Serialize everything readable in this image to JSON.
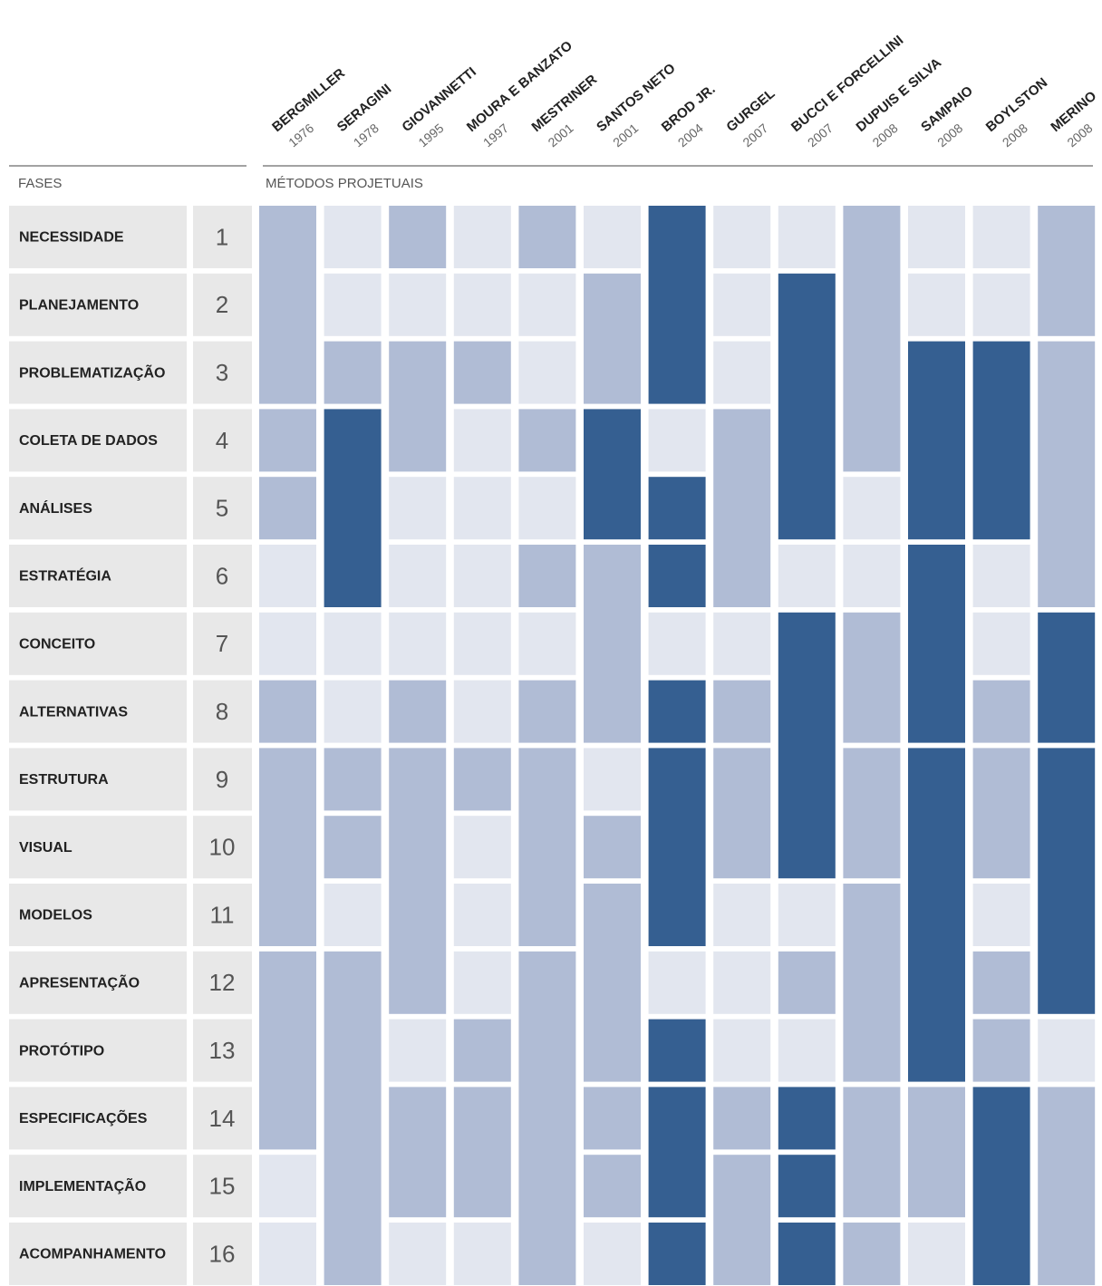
{
  "header": {
    "phases_label": "FASES",
    "methods_label": "MÉTODOS PROJETUAIS"
  },
  "phases": [
    {
      "label": "NECESSIDADE",
      "number": 1
    },
    {
      "label": "PLANEJAMENTO",
      "number": 2
    },
    {
      "label": "PROBLEMATIZAÇÃO",
      "number": 3
    },
    {
      "label": "COLETA DE DADOS",
      "number": 4
    },
    {
      "label": "ANÁLISES",
      "number": 5
    },
    {
      "label": "ESTRATÉGIA",
      "number": 6
    },
    {
      "label": "CONCEITO",
      "number": 7
    },
    {
      "label": "ALTERNATIVAS",
      "number": 8
    },
    {
      "label": "ESTRUTURA",
      "number": 9
    },
    {
      "label": "VISUAL",
      "number": 10
    },
    {
      "label": "MODELOS",
      "number": 11
    },
    {
      "label": "APRESENTAÇÃO",
      "number": 12
    },
    {
      "label": "PROTÓTIPO",
      "number": 13
    },
    {
      "label": "ESPECIFICAÇÕES",
      "number": 14
    },
    {
      "label": "IMPLEMENTAÇÃO",
      "number": 15
    },
    {
      "label": "ACOMPANHAMENTO",
      "number": 16
    }
  ],
  "tones": {
    "light": "#e2e6ef",
    "mid": "#b0bcd5",
    "dark": "#355f91"
  },
  "methods": [
    {
      "name": "BERGMILLER",
      "year": "1976",
      "blocks": [
        {
          "from": 1,
          "to": 3,
          "tone": "mid"
        },
        {
          "from": 4,
          "to": 4,
          "tone": "mid"
        },
        {
          "from": 5,
          "to": 5,
          "tone": "mid"
        },
        {
          "from": 6,
          "to": 6,
          "tone": "light"
        },
        {
          "from": 7,
          "to": 7,
          "tone": "light"
        },
        {
          "from": 8,
          "to": 8,
          "tone": "mid"
        },
        {
          "from": 9,
          "to": 11,
          "tone": "mid"
        },
        {
          "from": 12,
          "to": 14,
          "tone": "mid"
        },
        {
          "from": 15,
          "to": 15,
          "tone": "light"
        },
        {
          "from": 16,
          "to": 16,
          "tone": "light"
        }
      ]
    },
    {
      "name": "SERAGINI",
      "year": "1978",
      "blocks": [
        {
          "from": 1,
          "to": 1,
          "tone": "light"
        },
        {
          "from": 2,
          "to": 2,
          "tone": "light"
        },
        {
          "from": 3,
          "to": 3,
          "tone": "mid"
        },
        {
          "from": 4,
          "to": 6,
          "tone": "dark"
        },
        {
          "from": 7,
          "to": 7,
          "tone": "light"
        },
        {
          "from": 8,
          "to": 8,
          "tone": "light"
        },
        {
          "from": 9,
          "to": 9,
          "tone": "mid"
        },
        {
          "from": 10,
          "to": 10,
          "tone": "mid"
        },
        {
          "from": 11,
          "to": 11,
          "tone": "light"
        },
        {
          "from": 12,
          "to": 16,
          "tone": "mid"
        }
      ]
    },
    {
      "name": "GIOVANNETTI",
      "year": "1995",
      "blocks": [
        {
          "from": 1,
          "to": 1,
          "tone": "mid"
        },
        {
          "from": 2,
          "to": 2,
          "tone": "light"
        },
        {
          "from": 3,
          "to": 4,
          "tone": "mid"
        },
        {
          "from": 5,
          "to": 5,
          "tone": "light"
        },
        {
          "from": 6,
          "to": 6,
          "tone": "light"
        },
        {
          "from": 7,
          "to": 7,
          "tone": "light"
        },
        {
          "from": 8,
          "to": 8,
          "tone": "mid"
        },
        {
          "from": 9,
          "to": 12,
          "tone": "mid"
        },
        {
          "from": 13,
          "to": 13,
          "tone": "light"
        },
        {
          "from": 14,
          "to": 15,
          "tone": "mid"
        },
        {
          "from": 16,
          "to": 16,
          "tone": "light"
        }
      ]
    },
    {
      "name": "MOURA E BANZATO",
      "year": "1997",
      "blocks": [
        {
          "from": 1,
          "to": 1,
          "tone": "light"
        },
        {
          "from": 2,
          "to": 2,
          "tone": "light"
        },
        {
          "from": 3,
          "to": 3,
          "tone": "mid"
        },
        {
          "from": 4,
          "to": 4,
          "tone": "light"
        },
        {
          "from": 5,
          "to": 5,
          "tone": "light"
        },
        {
          "from": 6,
          "to": 6,
          "tone": "light"
        },
        {
          "from": 7,
          "to": 7,
          "tone": "light"
        },
        {
          "from": 8,
          "to": 8,
          "tone": "light"
        },
        {
          "from": 9,
          "to": 9,
          "tone": "mid"
        },
        {
          "from": 10,
          "to": 10,
          "tone": "light"
        },
        {
          "from": 11,
          "to": 11,
          "tone": "light"
        },
        {
          "from": 12,
          "to": 12,
          "tone": "light"
        },
        {
          "from": 13,
          "to": 13,
          "tone": "mid"
        },
        {
          "from": 14,
          "to": 15,
          "tone": "mid"
        },
        {
          "from": 16,
          "to": 16,
          "tone": "light"
        }
      ]
    },
    {
      "name": "MESTRINER",
      "year": "2001",
      "blocks": [
        {
          "from": 1,
          "to": 1,
          "tone": "mid"
        },
        {
          "from": 2,
          "to": 2,
          "tone": "light"
        },
        {
          "from": 3,
          "to": 3,
          "tone": "light"
        },
        {
          "from": 4,
          "to": 4,
          "tone": "mid"
        },
        {
          "from": 5,
          "to": 5,
          "tone": "light"
        },
        {
          "from": 6,
          "to": 6,
          "tone": "mid"
        },
        {
          "from": 7,
          "to": 7,
          "tone": "light"
        },
        {
          "from": 8,
          "to": 8,
          "tone": "mid"
        },
        {
          "from": 9,
          "to": 11,
          "tone": "mid"
        },
        {
          "from": 12,
          "to": 16,
          "tone": "mid"
        }
      ]
    },
    {
      "name": "SANTOS NETO",
      "year": "2001",
      "blocks": [
        {
          "from": 1,
          "to": 1,
          "tone": "light"
        },
        {
          "from": 2,
          "to": 3,
          "tone": "mid"
        },
        {
          "from": 4,
          "to": 5,
          "tone": "dark"
        },
        {
          "from": 6,
          "to": 8,
          "tone": "mid"
        },
        {
          "from": 9,
          "to": 9,
          "tone": "light"
        },
        {
          "from": 10,
          "to": 10,
          "tone": "mid"
        },
        {
          "from": 11,
          "to": 13,
          "tone": "mid"
        },
        {
          "from": 14,
          "to": 14,
          "tone": "mid"
        },
        {
          "from": 15,
          "to": 15,
          "tone": "mid"
        },
        {
          "from": 16,
          "to": 16,
          "tone": "light"
        }
      ]
    },
    {
      "name": "BROD JR.",
      "year": "2004",
      "blocks": [
        {
          "from": 1,
          "to": 3,
          "tone": "dark"
        },
        {
          "from": 4,
          "to": 4,
          "tone": "light"
        },
        {
          "from": 5,
          "to": 5,
          "tone": "dark"
        },
        {
          "from": 6,
          "to": 6,
          "tone": "dark"
        },
        {
          "from": 7,
          "to": 7,
          "tone": "light"
        },
        {
          "from": 8,
          "to": 8,
          "tone": "dark"
        },
        {
          "from": 9,
          "to": 11,
          "tone": "dark"
        },
        {
          "from": 12,
          "to": 12,
          "tone": "light"
        },
        {
          "from": 13,
          "to": 13,
          "tone": "dark"
        },
        {
          "from": 14,
          "to": 15,
          "tone": "dark"
        },
        {
          "from": 16,
          "to": 16,
          "tone": "dark"
        }
      ]
    },
    {
      "name": "GURGEL",
      "year": "2007",
      "blocks": [
        {
          "from": 1,
          "to": 1,
          "tone": "light"
        },
        {
          "from": 2,
          "to": 2,
          "tone": "light"
        },
        {
          "from": 3,
          "to": 3,
          "tone": "light"
        },
        {
          "from": 4,
          "to": 6,
          "tone": "mid"
        },
        {
          "from": 7,
          "to": 7,
          "tone": "light"
        },
        {
          "from": 8,
          "to": 8,
          "tone": "mid"
        },
        {
          "from": 9,
          "to": 10,
          "tone": "mid"
        },
        {
          "from": 11,
          "to": 11,
          "tone": "light"
        },
        {
          "from": 12,
          "to": 12,
          "tone": "light"
        },
        {
          "from": 13,
          "to": 13,
          "tone": "light"
        },
        {
          "from": 14,
          "to": 14,
          "tone": "mid"
        },
        {
          "from": 15,
          "to": 16,
          "tone": "mid"
        }
      ]
    },
    {
      "name": "BUCCI E FORCELLINI",
      "year": "2007",
      "blocks": [
        {
          "from": 1,
          "to": 1,
          "tone": "light"
        },
        {
          "from": 2,
          "to": 5,
          "tone": "dark"
        },
        {
          "from": 6,
          "to": 6,
          "tone": "light"
        },
        {
          "from": 7,
          "to": 10,
          "tone": "dark"
        },
        {
          "from": 11,
          "to": 11,
          "tone": "light"
        },
        {
          "from": 12,
          "to": 12,
          "tone": "mid"
        },
        {
          "from": 13,
          "to": 13,
          "tone": "light"
        },
        {
          "from": 14,
          "to": 14,
          "tone": "dark"
        },
        {
          "from": 15,
          "to": 15,
          "tone": "dark"
        },
        {
          "from": 16,
          "to": 16,
          "tone": "dark"
        }
      ]
    },
    {
      "name": "DUPUIS E SILVA",
      "year": "2008",
      "blocks": [
        {
          "from": 1,
          "to": 4,
          "tone": "mid"
        },
        {
          "from": 5,
          "to": 5,
          "tone": "light"
        },
        {
          "from": 6,
          "to": 6,
          "tone": "light"
        },
        {
          "from": 7,
          "to": 8,
          "tone": "mid"
        },
        {
          "from": 9,
          "to": 10,
          "tone": "mid"
        },
        {
          "from": 11,
          "to": 13,
          "tone": "mid"
        },
        {
          "from": 14,
          "to": 15,
          "tone": "mid"
        },
        {
          "from": 16,
          "to": 16,
          "tone": "mid"
        }
      ]
    },
    {
      "name": "SAMPAIO",
      "year": "2008",
      "blocks": [
        {
          "from": 1,
          "to": 1,
          "tone": "light"
        },
        {
          "from": 2,
          "to": 2,
          "tone": "light"
        },
        {
          "from": 3,
          "to": 5,
          "tone": "dark"
        },
        {
          "from": 6,
          "to": 8,
          "tone": "dark"
        },
        {
          "from": 9,
          "to": 13,
          "tone": "dark"
        },
        {
          "from": 14,
          "to": 15,
          "tone": "mid"
        },
        {
          "from": 16,
          "to": 16,
          "tone": "light"
        }
      ]
    },
    {
      "name": "BOYLSTON",
      "year": "2008",
      "blocks": [
        {
          "from": 1,
          "to": 1,
          "tone": "light"
        },
        {
          "from": 2,
          "to": 2,
          "tone": "light"
        },
        {
          "from": 3,
          "to": 5,
          "tone": "dark"
        },
        {
          "from": 6,
          "to": 6,
          "tone": "light"
        },
        {
          "from": 7,
          "to": 7,
          "tone": "light"
        },
        {
          "from": 8,
          "to": 8,
          "tone": "mid"
        },
        {
          "from": 9,
          "to": 10,
          "tone": "mid"
        },
        {
          "from": 11,
          "to": 11,
          "tone": "light"
        },
        {
          "from": 12,
          "to": 12,
          "tone": "mid"
        },
        {
          "from": 13,
          "to": 13,
          "tone": "mid"
        },
        {
          "from": 14,
          "to": 16,
          "tone": "dark"
        }
      ]
    },
    {
      "name": "MERINO",
      "year": "2008",
      "blocks": [
        {
          "from": 1,
          "to": 2,
          "tone": "mid"
        },
        {
          "from": 3,
          "to": 6,
          "tone": "mid"
        },
        {
          "from": 7,
          "to": 8,
          "tone": "dark"
        },
        {
          "from": 9,
          "to": 12,
          "tone": "dark"
        },
        {
          "from": 13,
          "to": 13,
          "tone": "light"
        },
        {
          "from": 14,
          "to": 16,
          "tone": "mid"
        }
      ]
    }
  ]
}
